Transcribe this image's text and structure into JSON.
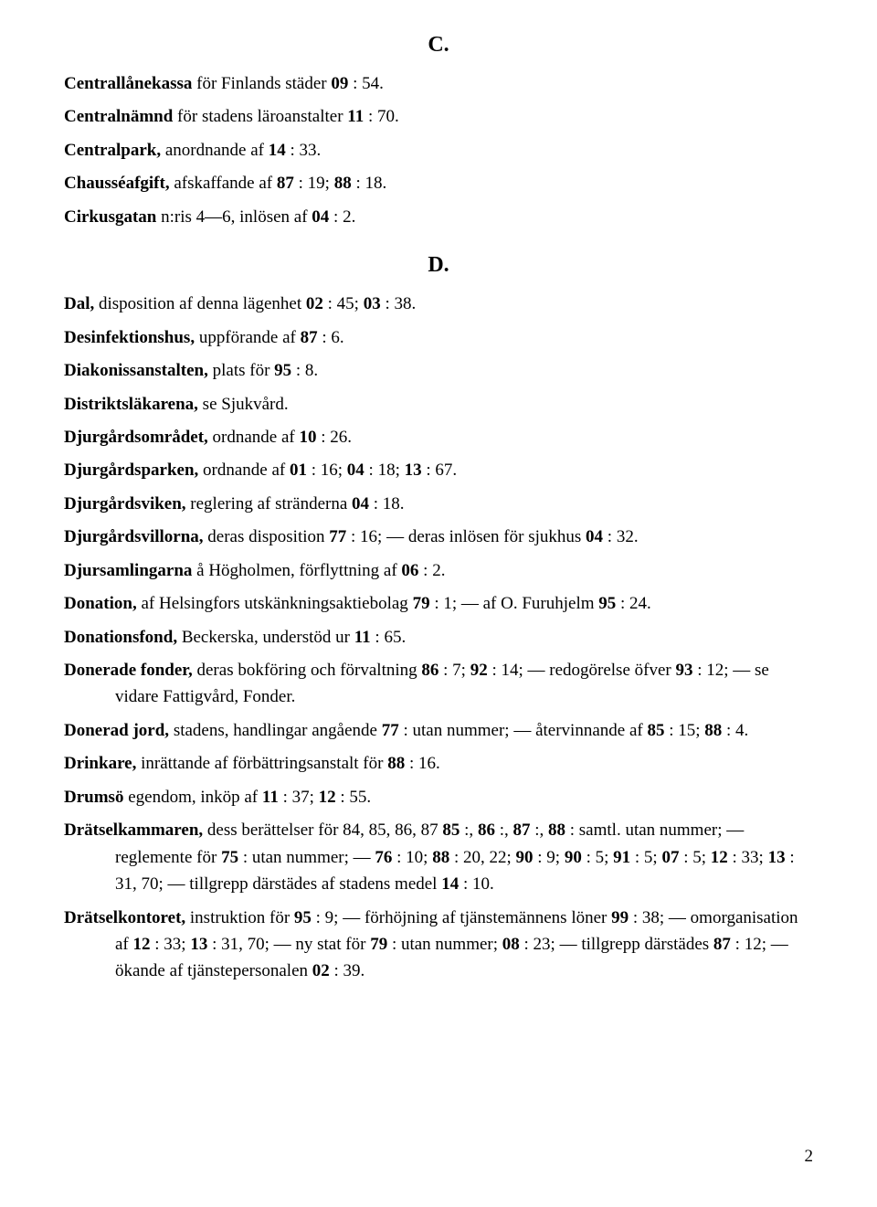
{
  "section_c": {
    "heading": "C.",
    "entries": [
      {
        "term": "Centrallånekassa",
        "tail": " för Finlands städer ",
        "refs": [
          "09"
        ],
        "post": " : 54."
      },
      {
        "term": "Centralnämnd",
        "tail": " för stadens läroanstalter ",
        "refs": [
          "11"
        ],
        "post": " : 70."
      },
      {
        "term": "Centralpark,",
        "tail": " anordnande af ",
        "refs": [
          "14"
        ],
        "post": " : 33."
      },
      {
        "term": "Chausséafgift,",
        "tail": " afskaffande af ",
        "refs": [
          "87"
        ],
        "post": " : 19;  ",
        "refs2": [
          "88"
        ],
        "post2": " : 18."
      },
      {
        "term": "Cirkusgatan",
        "tail": " n:ris 4—6, inlösen af ",
        "refs": [
          "04"
        ],
        "post": " : 2."
      }
    ]
  },
  "section_d": {
    "heading": "D.",
    "entries": [
      {
        "html": "<span class='term'>Dal,</span> disposition af denna lägenhet <span class='ref'>02</span> : 45; <span class='ref'>03</span> : 38."
      },
      {
        "html": "<span class='term'>Desinfektionshus,</span> uppförande af <span class='ref'>87</span> : 6."
      },
      {
        "html": "<span class='term'>Diakonissanstalten,</span> plats för <span class='ref'>95</span> : 8."
      },
      {
        "html": "<span class='term'>Distriktsläkarena,</span> se Sjukvård."
      },
      {
        "html": "<span class='term'>Djurgårdsområdet,</span> ordnande af <span class='ref'>10</span> : 26."
      },
      {
        "html": "<span class='term'>Djurgårdsparken,</span> ordnande af <span class='ref'>01</span> : 16; <span class='ref'>04</span> : 18; <span class='ref'>13</span> : 67."
      },
      {
        "html": "<span class='term'>Djurgårdsviken,</span> reglering af stränderna <span class='ref'>04</span> : 18."
      },
      {
        "html": "<span class='term'>Djurgårdsvillorna,</span> deras disposition <span class='ref'>77</span> : 16; — deras inlösen för sjukhus <span class='ref'>04</span> : 32."
      },
      {
        "html": "<span class='term'>Djursamlingarna</span> å Högholmen, förflyttning af <span class='ref'>06</span> : 2."
      },
      {
        "html": "<span class='term'>Donation,</span> af Helsingfors utskänkningsaktiebolag <span class='ref'>79</span> : 1; — af O. Furuhjelm <span class='ref'>95</span> : 24."
      },
      {
        "html": "<span class='term'>Donationsfond,</span> Beckerska, understöd ur <span class='ref'>11</span> : 65."
      },
      {
        "html": "<span class='term'>Donerade fonder,</span> deras bokföring och förvaltning <span class='ref'>86</span> : 7; <span class='ref'>92</span> : 14; — redogörelse öfver <span class='ref'>93</span> : 12; — se vidare Fattigvård, Fonder.",
        "cont": true
      },
      {
        "html": "<span class='term'>Donerad jord,</span> stadens, handlingar angående <span class='ref'>77</span> : utan nummer; — återvinnande af <span class='ref'>85</span> : 15; <span class='ref'>88</span> : 4.",
        "cont": true
      },
      {
        "html": "<span class='term'>Drinkare,</span> inrättande af förbättringsanstalt för <span class='ref'>88</span> : 16."
      },
      {
        "html": "<span class='term'>Drumsö</span> egendom, inköp af <span class='ref'>11</span> : 37; <span class='ref'>12</span> : 55."
      },
      {
        "html": "<span class='term'>Drätselkammaren,</span> dess berättelser för 84, 85, 86, 87 <span class='ref'>85</span> :, <span class='ref'>86</span> :, <span class='ref'>87</span> :, <span class='ref'>88</span> : samtl. utan nummer; — reglemente för <span class='ref'>75</span> : utan nummer; — <span class='ref'>76</span> : 10; <span class='ref'>88</span> : 20, 22; <span class='ref'>90</span> : 9; <span class='ref'>90</span> : 5; <span class='ref'>91</span> : 5; <span class='ref'>07</span> : 5; <span class='ref'>12</span> : 33; <span class='ref'>13</span> : 31, 70; — tillgrepp därstädes af stadens medel <span class='ref'>14</span> : 10.",
        "cont": true
      },
      {
        "html": "<span class='term'>Drätselkontoret,</span> instruktion för <span class='ref'>95</span> : 9; — förhöjning af tjänstemännens löner <span class='ref'>99</span> : 38; — omorganisation af <span class='ref'>12</span> : 33; <span class='ref'>13</span> : 31, 70; — ny stat för <span class='ref'>79</span> : utan nummer; <span class='ref'>08</span> : 23; — tillgrepp därstädes <span class='ref'>87</span> : 12; — ökande af tjänstepersonalen <span class='ref'>02</span> : 39.",
        "cont": true
      }
    ]
  },
  "page_number": "2"
}
